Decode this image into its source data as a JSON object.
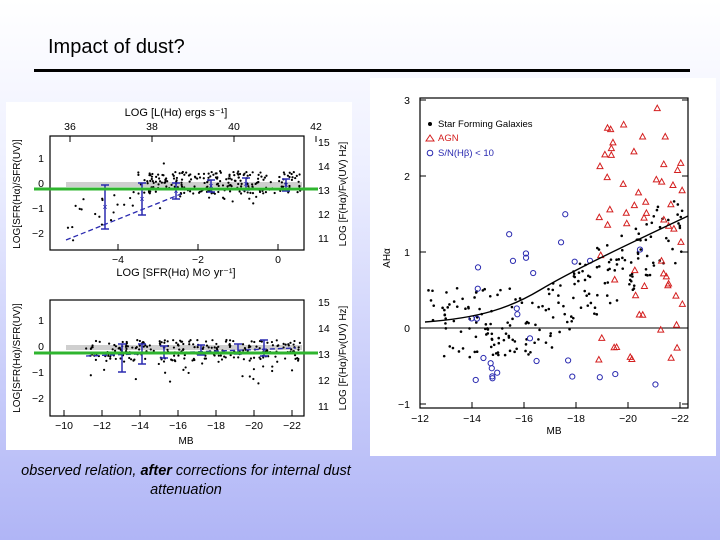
{
  "slide": {
    "title": "Impact of dust?",
    "caption_pre": "observed relation, ",
    "caption_bold": "after",
    "caption_post": " corrections for internal dust attenuation"
  },
  "left_figure": {
    "top_panel": {
      "top_axis_label": "LOG [L(Hα) ergs s⁻¹]",
      "top_ticks": [
        "36",
        "38",
        "40",
        "42"
      ],
      "bottom_axis_label": "LOG [SFR(Hα) M⊙ yr⁻¹]",
      "bottom_ticks": [
        "−4",
        "−2",
        "0"
      ],
      "left_axis_label": "LOG[SFR(Hα)/SFR(UV)]",
      "left_ticks": [
        "1",
        "0",
        "−1",
        "−2"
      ],
      "right_axis_label": "LOG [F(Hα)/Fν(UV) Hz]",
      "right_ticks": [
        "15",
        "14",
        "13",
        "12",
        "11"
      ]
    },
    "bottom_panel": {
      "left_axis_label": "LOG[SFR(Hα)/SFR(UV)]",
      "left_ticks": [
        "1",
        "0",
        "−1",
        "−2"
      ],
      "right_axis_label": "LOG [F(Hα)/Fν(UV) Hz]",
      "right_ticks": [
        "15",
        "14",
        "13",
        "12",
        "11"
      ],
      "bottom_ticks": [
        "−10",
        "−12",
        "−14",
        "−16",
        "−18",
        "−20",
        "−22"
      ],
      "bottom_axis_label": "MB"
    },
    "highlight_color": "#2fb52f"
  },
  "right_figure": {
    "legend": [
      "Star Forming Galaxies",
      "AGN",
      "S/N(Hβ) < 10"
    ],
    "y_ticks": [
      "3",
      "2",
      "1",
      "0",
      "−1"
    ],
    "x_ticks": [
      "−12",
      "−14",
      "−16",
      "−18",
      "−20",
      "−22"
    ],
    "x_label": "MB",
    "y_label": "AHα",
    "colors": {
      "sf": "#000000",
      "agn": "#d42020",
      "lowsn": "#2a2ab0"
    }
  }
}
